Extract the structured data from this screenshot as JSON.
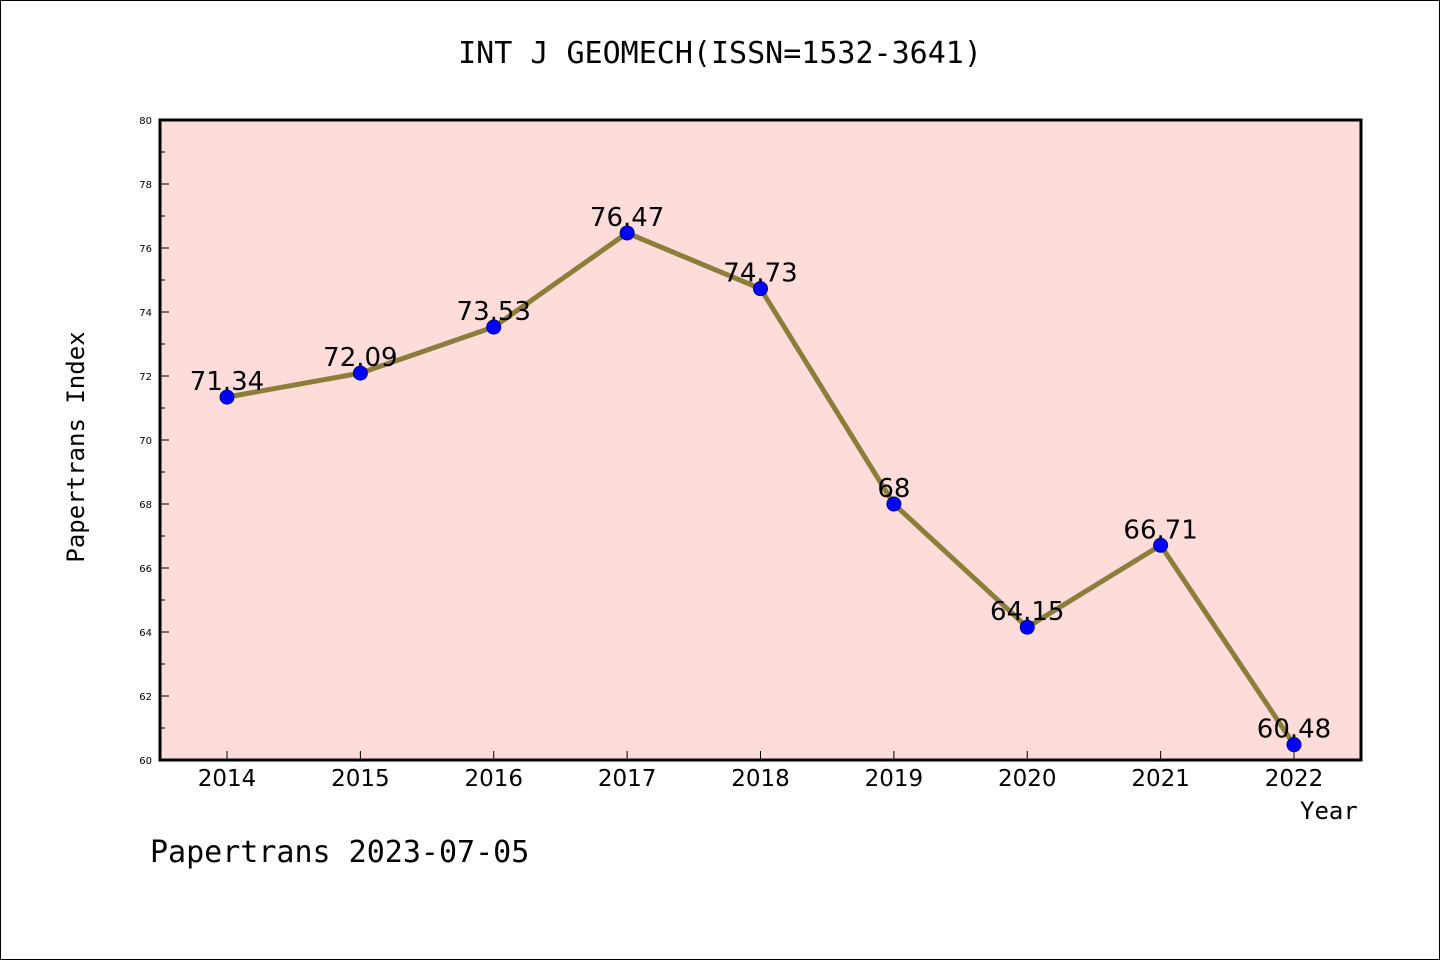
{
  "chart_data": {
    "type": "line",
    "title": "INT J GEOMECH(ISSN=1532-3641)",
    "xlabel": "Year",
    "ylabel": "Papertrans Index",
    "footer": "Papertrans 2023-07-05",
    "categories": [
      "2014",
      "2015",
      "2016",
      "2017",
      "2018",
      "2019",
      "2020",
      "2021",
      "2022"
    ],
    "series": [
      {
        "values": [
          71.34,
          72.09,
          73.53,
          76.47,
          74.73,
          68,
          64.15,
          66.71,
          60.48
        ],
        "labels": [
          "71.34",
          "72.09",
          "73.53",
          "76.47",
          "74.73",
          "68",
          "64.15",
          "66.71",
          "60.48"
        ]
      }
    ],
    "ylim": [
      60,
      80
    ],
    "yticks": [
      60,
      62,
      64,
      66,
      68,
      70,
      72,
      74,
      76,
      78,
      80
    ],
    "grid": false,
    "colors": {
      "plot_background": "#fddcd9",
      "line": "#8c7d3a",
      "marker": "#0000ff"
    }
  }
}
